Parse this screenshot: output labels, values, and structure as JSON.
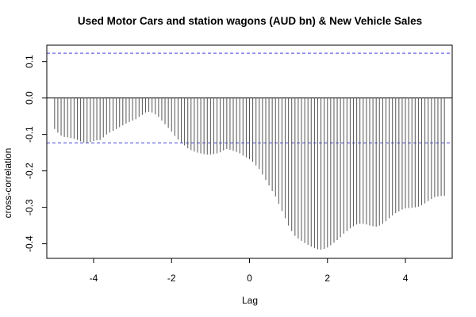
{
  "chart_data": {
    "type": "bar",
    "title": "Used Motor Cars and station wagons (AUD bn) & New Vehicle Sales",
    "xlabel": "Lag",
    "ylabel": "cross-correlation",
    "xlim": [
      -5.2,
      5.2
    ],
    "ylim": [
      -0.44,
      0.145
    ],
    "x_ticks": [
      -4,
      -2,
      0,
      2,
      4
    ],
    "x_tick_labels": [
      "-4",
      "-2",
      "0",
      "2",
      "4"
    ],
    "y_ticks": [
      -0.4,
      -0.3,
      -0.2,
      -0.1,
      0.0,
      0.1
    ],
    "y_tick_labels": [
      "-0.4",
      "-0.3",
      "-0.2",
      "-0.1",
      "0.0",
      "0.1"
    ],
    "confidence_limit": 0.123,
    "colors": {
      "bars": "#555555",
      "confidence_lines": "#4444dd",
      "zero_line": "#000000"
    },
    "x": [
      -5.0,
      -4.917,
      -4.833,
      -4.75,
      -4.667,
      -4.583,
      -4.5,
      -4.417,
      -4.333,
      -4.25,
      -4.167,
      -4.083,
      -4.0,
      -3.917,
      -3.833,
      -3.75,
      -3.667,
      -3.583,
      -3.5,
      -3.417,
      -3.333,
      -3.25,
      -3.167,
      -3.083,
      -3.0,
      -2.917,
      -2.833,
      -2.75,
      -2.667,
      -2.583,
      -2.5,
      -2.417,
      -2.333,
      -2.25,
      -2.167,
      -2.083,
      -2.0,
      -1.917,
      -1.833,
      -1.75,
      -1.667,
      -1.583,
      -1.5,
      -1.417,
      -1.333,
      -1.25,
      -1.167,
      -1.083,
      -1.0,
      -0.917,
      -0.833,
      -0.75,
      -0.667,
      -0.583,
      -0.5,
      -0.417,
      -0.333,
      -0.25,
      -0.167,
      -0.083,
      0.0,
      0.083,
      0.167,
      0.25,
      0.333,
      0.417,
      0.5,
      0.583,
      0.667,
      0.75,
      0.833,
      0.917,
      1.0,
      1.083,
      1.167,
      1.25,
      1.333,
      1.417,
      1.5,
      1.583,
      1.667,
      1.75,
      1.833,
      1.917,
      2.0,
      2.083,
      2.167,
      2.25,
      2.333,
      2.417,
      2.5,
      2.583,
      2.667,
      2.75,
      2.833,
      2.917,
      3.0,
      3.083,
      3.167,
      3.25,
      3.333,
      3.417,
      3.5,
      3.583,
      3.667,
      3.75,
      3.833,
      3.917,
      4.0,
      4.083,
      4.167,
      4.25,
      4.333,
      4.417,
      4.5,
      4.583,
      4.667,
      4.75,
      4.833,
      4.917,
      5.0
    ],
    "values": [
      -0.085,
      -0.095,
      -0.103,
      -0.107,
      -0.108,
      -0.11,
      -0.112,
      -0.115,
      -0.119,
      -0.122,
      -0.123,
      -0.121,
      -0.118,
      -0.116,
      -0.115,
      -0.108,
      -0.1,
      -0.095,
      -0.09,
      -0.085,
      -0.08,
      -0.075,
      -0.07,
      -0.066,
      -0.062,
      -0.058,
      -0.052,
      -0.046,
      -0.04,
      -0.038,
      -0.04,
      -0.045,
      -0.052,
      -0.062,
      -0.072,
      -0.082,
      -0.092,
      -0.104,
      -0.114,
      -0.122,
      -0.13,
      -0.138,
      -0.143,
      -0.147,
      -0.15,
      -0.152,
      -0.154,
      -0.155,
      -0.155,
      -0.154,
      -0.152,
      -0.149,
      -0.144,
      -0.14,
      -0.142,
      -0.145,
      -0.148,
      -0.152,
      -0.158,
      -0.163,
      -0.168,
      -0.175,
      -0.185,
      -0.195,
      -0.21,
      -0.225,
      -0.24,
      -0.255,
      -0.27,
      -0.29,
      -0.31,
      -0.33,
      -0.35,
      -0.365,
      -0.378,
      -0.386,
      -0.392,
      -0.398,
      -0.403,
      -0.408,
      -0.412,
      -0.415,
      -0.416,
      -0.414,
      -0.41,
      -0.404,
      -0.397,
      -0.39,
      -0.382,
      -0.372,
      -0.365,
      -0.358,
      -0.352,
      -0.347,
      -0.345,
      -0.345,
      -0.347,
      -0.35,
      -0.352,
      -0.353,
      -0.35,
      -0.345,
      -0.338,
      -0.33,
      -0.322,
      -0.316,
      -0.311,
      -0.306,
      -0.303,
      -0.302,
      -0.301,
      -0.3,
      -0.298,
      -0.294,
      -0.289,
      -0.283,
      -0.277,
      -0.272,
      -0.27,
      -0.269,
      -0.268
    ]
  }
}
